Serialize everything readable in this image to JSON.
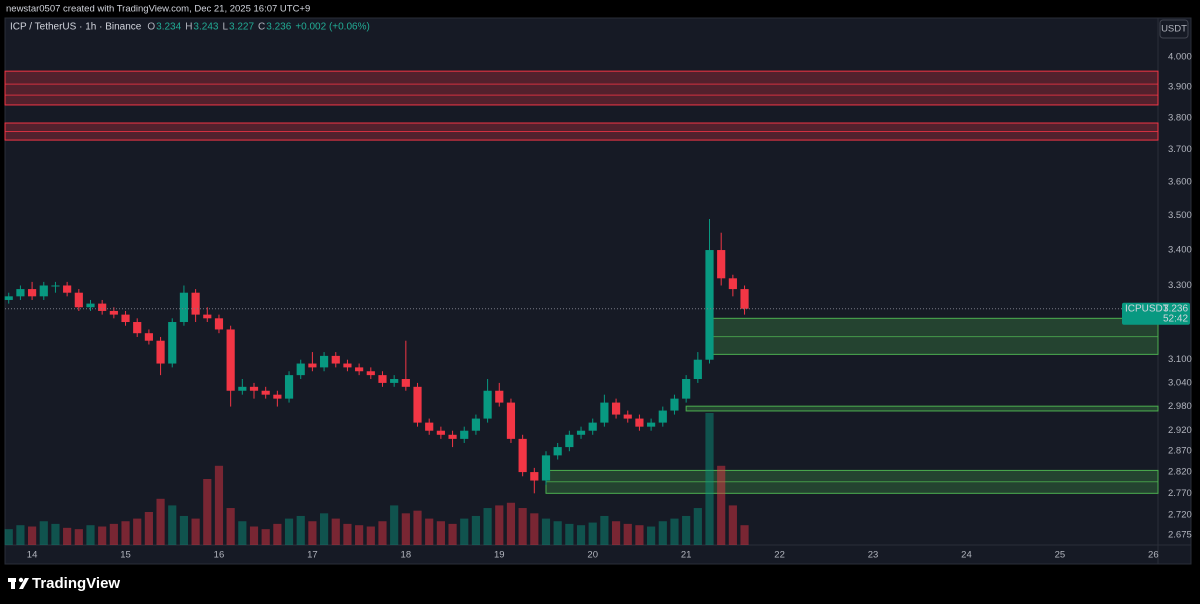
{
  "chart_data": {
    "type": "candlestick",
    "credit": "newstar0507 created with TradingView.com, Dec 21, 2025 16:07 UTC+9",
    "title": "ICP / TetherUS · 1h · Binance",
    "legend": {
      "letters": [
        "O",
        "H",
        "L",
        "C"
      ],
      "values": [
        3.234,
        3.243,
        3.227,
        3.236
      ],
      "change": "+0.002 (+0.06%)"
    },
    "currency": "USDT",
    "symbol": "ICPUSDT",
    "last_price": 3.236,
    "countdown": "52:42",
    "brand": "TradingView",
    "up_color": "#089981",
    "down_color": "#f23645",
    "log_scale": true,
    "grid": false,
    "xlim": [
      13.71,
      26.05
    ],
    "xticks": [
      14,
      15,
      16,
      17,
      18,
      19,
      20,
      21,
      22,
      23,
      24,
      25,
      26
    ],
    "ylim": [
      2.652,
      4.134
    ],
    "yticks": [
      {
        "value": 4.0,
        "label": "4.000"
      },
      {
        "value": 3.9,
        "label": "3.900"
      },
      {
        "value": 3.8,
        "label": "3.800"
      },
      {
        "value": 3.7,
        "label": "3.700"
      },
      {
        "value": 3.6,
        "label": "3.600"
      },
      {
        "value": 3.5,
        "label": "3.500"
      },
      {
        "value": 3.4,
        "label": "3.400"
      },
      {
        "value": 3.3,
        "label": "3.300"
      },
      {
        "value": 3.1,
        "label": "3.100"
      },
      {
        "value": 3.04,
        "label": "3.040"
      },
      {
        "value": 2.98,
        "label": "2.980"
      },
      {
        "value": 2.92,
        "label": "2.920"
      },
      {
        "value": 2.87,
        "label": "2.870"
      },
      {
        "value": 2.82,
        "label": "2.820"
      },
      {
        "value": 2.77,
        "label": "2.770"
      },
      {
        "value": 2.72,
        "label": "2.720"
      },
      2.675
    ],
    "zones": [
      {
        "low": 3.842,
        "high": 3.953,
        "lines": [
          3.91,
          3.874
        ],
        "color": "#f23645"
      },
      {
        "low": 3.73,
        "high": 3.784,
        "lines": [
          3.757
        ],
        "color": "#f23645"
      },
      {
        "low": 3.114,
        "high": 3.21,
        "lines": [
          3.161
        ],
        "color": "#4caf50",
        "from": 21.25
      },
      {
        "low": 2.969,
        "high": 2.981,
        "lines": [],
        "color": "#4caf50",
        "from": 21.0
      },
      {
        "low": 2.77,
        "high": 2.824,
        "lines": [
          2.797
        ],
        "color": "#4caf50",
        "from": 19.5
      }
    ],
    "x": [
      13.75,
      13.875,
      14.0,
      14.125,
      14.25,
      14.375,
      14.5,
      14.625,
      14.75,
      14.875,
      15.0,
      15.125,
      15.25,
      15.375,
      15.5,
      15.625,
      15.75,
      15.875,
      16.0,
      16.125,
      16.25,
      16.375,
      16.5,
      16.625,
      16.75,
      16.875,
      17.0,
      17.125,
      17.25,
      17.375,
      17.5,
      17.625,
      17.75,
      17.875,
      18.0,
      18.125,
      18.25,
      18.375,
      18.5,
      18.625,
      18.75,
      18.875,
      19.0,
      19.125,
      19.25,
      19.375,
      19.5,
      19.625,
      19.75,
      19.875,
      20.0,
      20.125,
      20.25,
      20.375,
      20.5,
      20.625,
      20.75,
      20.875,
      21.0,
      21.125,
      21.25,
      21.375,
      21.5,
      21.625
    ],
    "open": [
      3.26,
      3.27,
      3.29,
      3.27,
      3.3,
      3.3,
      3.28,
      3.24,
      3.25,
      3.23,
      3.22,
      3.2,
      3.17,
      3.15,
      3.09,
      3.2,
      3.28,
      3.22,
      3.21,
      3.18,
      3.02,
      3.03,
      3.02,
      3.01,
      3.0,
      3.06,
      3.09,
      3.08,
      3.11,
      3.09,
      3.08,
      3.07,
      3.06,
      3.04,
      3.05,
      3.03,
      2.94,
      2.92,
      2.91,
      2.9,
      2.92,
      2.95,
      3.02,
      2.99,
      2.9,
      2.82,
      2.8,
      2.86,
      2.88,
      2.91,
      2.92,
      2.94,
      2.99,
      2.96,
      2.95,
      2.93,
      2.94,
      2.97,
      3.0,
      3.05,
      3.1,
      3.4,
      3.32,
      3.29
    ],
    "high": [
      3.28,
      3.3,
      3.31,
      3.31,
      3.31,
      3.31,
      3.29,
      3.26,
      3.26,
      3.24,
      3.23,
      3.21,
      3.18,
      3.16,
      3.21,
      3.3,
      3.29,
      3.24,
      3.22,
      3.19,
      3.05,
      3.04,
      3.03,
      3.02,
      3.07,
      3.1,
      3.12,
      3.12,
      3.12,
      3.1,
      3.09,
      3.08,
      3.07,
      3.06,
      3.15,
      3.04,
      2.95,
      2.93,
      2.92,
      2.93,
      2.96,
      3.05,
      3.04,
      3.0,
      2.91,
      2.83,
      2.87,
      2.89,
      2.92,
      2.93,
      2.95,
      3.01,
      3.0,
      2.97,
      2.96,
      2.95,
      2.98,
      3.01,
      3.06,
      3.12,
      3.49,
      3.45,
      3.33,
      3.3
    ],
    "low": [
      3.25,
      3.26,
      3.26,
      3.26,
      3.28,
      3.27,
      3.23,
      3.23,
      3.22,
      3.21,
      3.19,
      3.16,
      3.14,
      3.06,
      3.08,
      3.19,
      3.2,
      3.2,
      3.17,
      2.98,
      3.01,
      3.0,
      3.0,
      2.98,
      2.99,
      3.05,
      3.07,
      3.07,
      3.08,
      3.07,
      3.06,
      3.05,
      3.03,
      3.03,
      3.02,
      2.93,
      2.91,
      2.9,
      2.88,
      2.89,
      2.91,
      2.94,
      2.98,
      2.89,
      2.81,
      2.77,
      2.79,
      2.85,
      2.87,
      2.9,
      2.91,
      2.93,
      2.95,
      2.94,
      2.92,
      2.92,
      2.93,
      2.96,
      2.99,
      3.04,
      3.09,
      3.3,
      3.27,
      3.22
    ],
    "close": [
      3.27,
      3.29,
      3.27,
      3.3,
      3.3,
      3.28,
      3.24,
      3.25,
      3.23,
      3.22,
      3.2,
      3.17,
      3.15,
      3.09,
      3.2,
      3.28,
      3.22,
      3.21,
      3.18,
      3.02,
      3.03,
      3.02,
      3.01,
      3.0,
      3.06,
      3.09,
      3.08,
      3.11,
      3.09,
      3.08,
      3.07,
      3.06,
      3.04,
      3.05,
      3.03,
      2.94,
      2.92,
      2.91,
      2.9,
      2.92,
      2.95,
      3.02,
      2.99,
      2.9,
      2.82,
      2.8,
      2.86,
      2.88,
      2.91,
      2.92,
      2.94,
      2.99,
      2.96,
      2.95,
      2.93,
      2.94,
      2.97,
      3.0,
      3.05,
      3.1,
      3.4,
      3.32,
      3.29,
      3.236
    ],
    "volume": [
      12,
      15,
      14,
      18,
      16,
      13,
      12,
      15,
      14,
      16,
      18,
      20,
      25,
      35,
      30,
      22,
      20,
      50,
      60,
      28,
      18,
      14,
      12,
      16,
      20,
      22,
      18,
      24,
      20,
      16,
      15,
      14,
      18,
      30,
      24,
      26,
      20,
      18,
      16,
      20,
      22,
      28,
      30,
      32,
      28,
      24,
      20,
      18,
      16,
      15,
      17,
      22,
      18,
      16,
      15,
      14,
      18,
      20,
      22,
      28,
      100,
      60,
      30,
      15
    ]
  }
}
